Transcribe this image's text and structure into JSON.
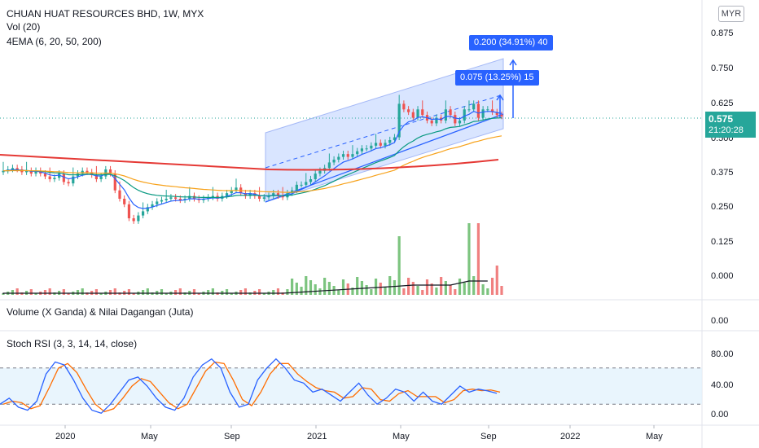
{
  "header": {
    "title": "CHUAN HUAT RESOURCES BHD, 1W, MYX",
    "volume_legend": "Vol (20)",
    "ema_legend": "4EMA (6, 20, 50, 200)",
    "currency_label": "MYR"
  },
  "panes": {
    "volume_value_legend": "Volume (X Ganda) & Nilai Dagangan (Juta)",
    "stoch_legend": "Stoch RSI (3, 3, 14, 14, close)"
  },
  "price_axis": {
    "ticks": [
      "0.875",
      "0.750",
      "0.625",
      "0.500",
      "0.375",
      "0.250",
      "0.125",
      "0.000"
    ],
    "tick_values": [
      0.875,
      0.75,
      0.625,
      0.5,
      0.375,
      0.25,
      0.125,
      0.0
    ]
  },
  "value_axis": {
    "ticks": [
      "0.00"
    ]
  },
  "stoch_axis": {
    "ticks": [
      "80.00",
      "40.00",
      "0.00"
    ],
    "tick_values": [
      80,
      40,
      0
    ]
  },
  "time_axis": {
    "labels": [
      "2020",
      "May",
      "Sep",
      "2021",
      "May",
      "Sep",
      "2022",
      "May"
    ]
  },
  "last_price": {
    "value": "0.575",
    "countdown": "21:20:28"
  },
  "measure_tags": {
    "outer": "0.200 (34.91%) 40",
    "inner": "0.075 (13.25%) 15"
  },
  "colors": {
    "up": "#26a69a",
    "down": "#ef5350",
    "ema6": "#2962ff",
    "ema20": "#089981",
    "ema50": "#f7a21b",
    "ema200": "#e53935",
    "stoch_k": "#2962ff",
    "stoch_d": "#ff6d00",
    "channel_fill": "#bbd0ff",
    "tag_blue": "#2962ff",
    "vol_up": "#7cc47f",
    "vol_down": "#f08080"
  },
  "chart_data": {
    "type": "candlestick",
    "title": "CHUAN HUAT RESOURCES BHD, 1W, MYX",
    "price_range": [
      0.0,
      0.95
    ],
    "close_series_approx": [
      0.38,
      0.385,
      0.39,
      0.385,
      0.375,
      0.38,
      0.37,
      0.38,
      0.37,
      0.36,
      0.35,
      0.355,
      0.37,
      0.34,
      0.335,
      0.36,
      0.37,
      0.38,
      0.375,
      0.365,
      0.35,
      0.36,
      0.385,
      0.37,
      0.31,
      0.28,
      0.26,
      0.21,
      0.2,
      0.22,
      0.235,
      0.25,
      0.26,
      0.27,
      0.275,
      0.28,
      0.285,
      0.28,
      0.275,
      0.28,
      0.29,
      0.28,
      0.275,
      0.28,
      0.285,
      0.29,
      0.28,
      0.29,
      0.3,
      0.31,
      0.32,
      0.3,
      0.29,
      0.3,
      0.29,
      0.28,
      0.285,
      0.29,
      0.3,
      0.29,
      0.285,
      0.3,
      0.31,
      0.33,
      0.33,
      0.34,
      0.35,
      0.37,
      0.38,
      0.39,
      0.41,
      0.42,
      0.43,
      0.44,
      0.43,
      0.44,
      0.45,
      0.46,
      0.46,
      0.47,
      0.48,
      0.47,
      0.48,
      0.49,
      0.5,
      0.62,
      0.6,
      0.59,
      0.57,
      0.6,
      0.58,
      0.56,
      0.55,
      0.57,
      0.56,
      0.6,
      0.58,
      0.55,
      0.56,
      0.6,
      0.6,
      0.62,
      0.57,
      0.6,
      0.6,
      0.59,
      0.58,
      0.575
    ],
    "stoch_rsi_k_approx": [
      20,
      30,
      15,
      10,
      25,
      70,
      90,
      85,
      60,
      30,
      10,
      5,
      20,
      40,
      60,
      65,
      50,
      30,
      15,
      10,
      30,
      65,
      85,
      95,
      80,
      40,
      15,
      20,
      60,
      80,
      95,
      80,
      60,
      55,
      40,
      45,
      35,
      25,
      40,
      55,
      35,
      20,
      30,
      45,
      40,
      25,
      40,
      25,
      20,
      35,
      50,
      40,
      45,
      42,
      38
    ]
  }
}
